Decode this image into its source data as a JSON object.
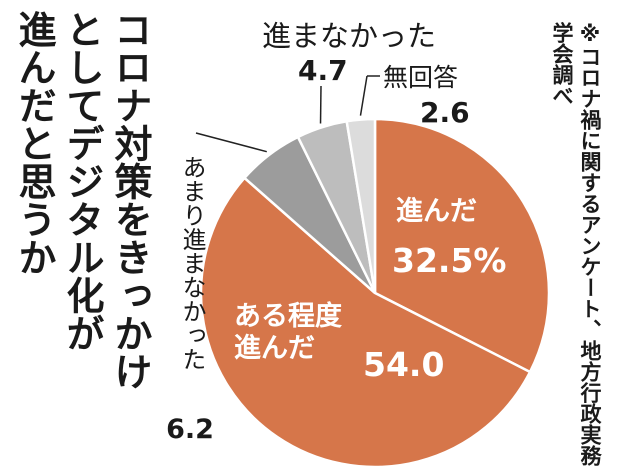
{
  "title": "コロナ対策をきっかけ\nとしてデジタル化が\n進んだと思うか",
  "source": "※コロナ禍に関するアンケート、地方行政実務学会調べ",
  "chart_data": {
    "type": "pie",
    "unit": "%",
    "slices": [
      {
        "label": "進んだ",
        "value": 32.5,
        "value_text": "32.5%",
        "color": "#d6764a"
      },
      {
        "label": "ある程度進んだ",
        "value": 54.0,
        "value_text": "54.0",
        "color": "#d6764a"
      },
      {
        "label": "あまり進まなかった",
        "value": 6.2,
        "value_text": "6.2",
        "color": "#9c9c9c"
      },
      {
        "label": "進まなかった",
        "value": 4.7,
        "value_text": "4.7",
        "color": "#bdbdbd"
      },
      {
        "label": "無回答",
        "value": 2.6,
        "value_text": "2.6",
        "color": "#dcdcdc"
      }
    ]
  }
}
